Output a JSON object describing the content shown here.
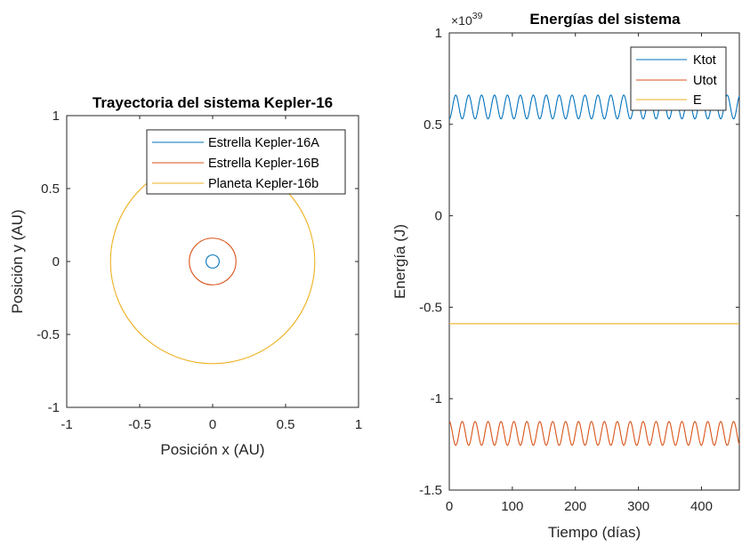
{
  "chart_data": [
    {
      "type": "line",
      "title": "Trayectoria del sistema Kepler-16",
      "xlabel": "Posición x (AU)",
      "ylabel": "Posición y (AU)",
      "xlim": [
        -1,
        1
      ],
      "ylim": [
        -1,
        1
      ],
      "xticks": [
        "-1",
        "-0.5",
        "0",
        "0.5",
        "1"
      ],
      "yticks": [
        "-1",
        "-0.5",
        "0",
        "0.5",
        "1"
      ],
      "grid": false,
      "legend_position": "top-right",
      "series": [
        {
          "name": "Estrella Kepler-16A",
          "color": "#0072BD",
          "shape": "circle",
          "center": [
            0,
            0
          ],
          "radius": 0.045
        },
        {
          "name": "Estrella Kepler-16B",
          "color": "#D95319",
          "shape": "circle",
          "center": [
            0,
            0
          ],
          "radius": 0.16
        },
        {
          "name": "Planeta Kepler-16b",
          "color": "#EDB120",
          "shape": "circle",
          "center": [
            0,
            0
          ],
          "radius": 0.7
        }
      ]
    },
    {
      "type": "line",
      "title": "Energías del sistema",
      "xlabel": "Tiempo (días)",
      "ylabel": "Energía (J)",
      "exponent_label": "×10",
      "exponent_power": "39",
      "xlim": [
        0,
        460
      ],
      "ylim": [
        -1.5,
        1
      ],
      "xticks": [
        "0",
        "100",
        "200",
        "300",
        "400"
      ],
      "yticks": [
        "-1.5",
        "-1",
        "-0.5",
        "0",
        "0.5",
        "1"
      ],
      "grid": false,
      "legend_position": "top-right",
      "series": [
        {
          "name": "Ktot",
          "color": "#0072BD",
          "mean": 0.595,
          "amplitude": 0.065,
          "period_days": 20.5,
          "phase": 3.14159
        },
        {
          "name": "Utot",
          "color": "#D95319",
          "mean": -1.19,
          "amplitude": 0.065,
          "period_days": 20.5,
          "phase": 0
        },
        {
          "name": "E",
          "color": "#EDB120",
          "mean": -0.59,
          "amplitude": 0,
          "period_days": 20.5,
          "phase": 0
        }
      ]
    }
  ]
}
